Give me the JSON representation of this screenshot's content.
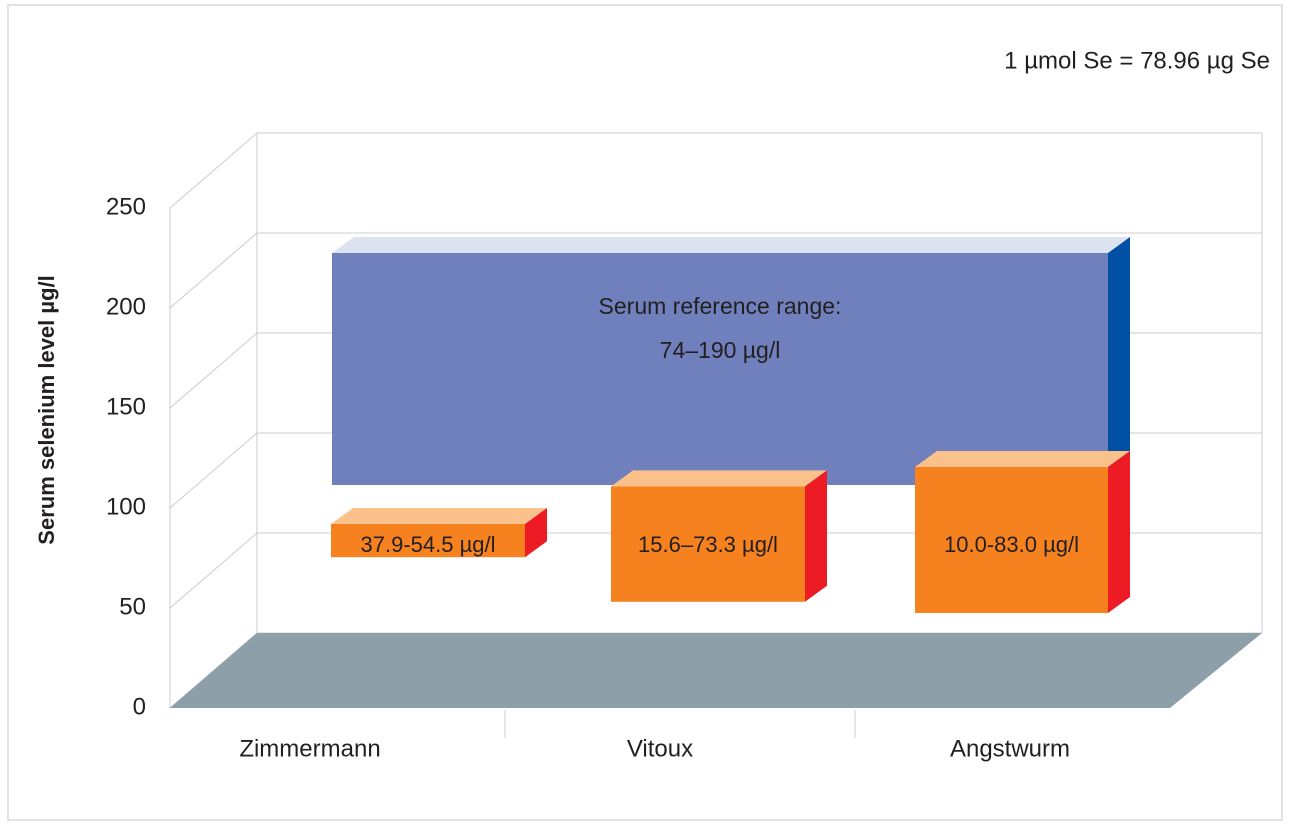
{
  "chart_data": {
    "type": "range-bar-3d",
    "note": "1 µmol Se = 78.96 µg Se",
    "y_label": "Serum selenium level µg/l",
    "ylim": [
      0,
      250
    ],
    "yticks": [
      0,
      50,
      100,
      150,
      200,
      250
    ],
    "grid": true,
    "categories": [
      "Zimmermann",
      "Vitoux",
      "Angstwurm"
    ],
    "ranges": [
      [
        37.9,
        54.5
      ],
      [
        15.6,
        73.3
      ],
      [
        10.0,
        83.0
      ]
    ],
    "value_labels": [
      "37.9-54.5 µg/l",
      "15.6–73.3 µg/l",
      "10.0-83.0 µg/l"
    ],
    "color": "#f5821f",
    "reference_range": {
      "low": 74,
      "high": 190,
      "label_lines": [
        "Serum reference range:",
        "74–190 µg/l"
      ],
      "color": "#6f80bd"
    }
  }
}
